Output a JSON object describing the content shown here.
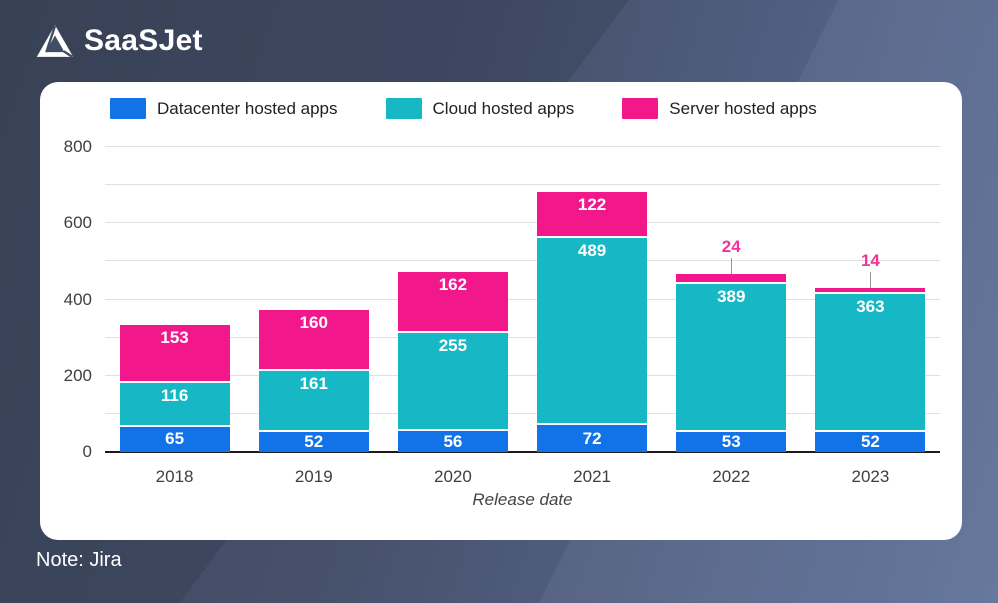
{
  "brand": {
    "logo_text": "SaaSJet"
  },
  "note": "Note: Jira",
  "colors": {
    "datacenter": "#1273e8",
    "cloud": "#17b8c6",
    "server": "#f2188c",
    "card_background": "#ffffff",
    "gridline": "#e1e1e1",
    "axis": "#1b1b1b"
  },
  "chart_data": {
    "type": "bar",
    "stacked": true,
    "title": "",
    "xlabel": "Release date",
    "ylabel": "",
    "ylim": [
      0,
      800
    ],
    "ytick_step": 200,
    "grid_step": 100,
    "grid": true,
    "legend_position": "top",
    "categories": [
      "2018",
      "2019",
      "2020",
      "2021",
      "2022",
      "2023"
    ],
    "series": [
      {
        "name": "Datacenter hosted apps",
        "color": "#1273e8",
        "values": [
          65,
          52,
          56,
          72,
          53,
          52
        ]
      },
      {
        "name": "Cloud hosted apps",
        "color": "#17b8c6",
        "values": [
          116,
          161,
          255,
          489,
          389,
          363
        ]
      },
      {
        "name": "Server hosted apps",
        "color": "#f2188c",
        "values": [
          153,
          160,
          162,
          122,
          24,
          14
        ]
      }
    ],
    "totals": [
      334,
      373,
      473,
      683,
      466,
      429
    ]
  }
}
